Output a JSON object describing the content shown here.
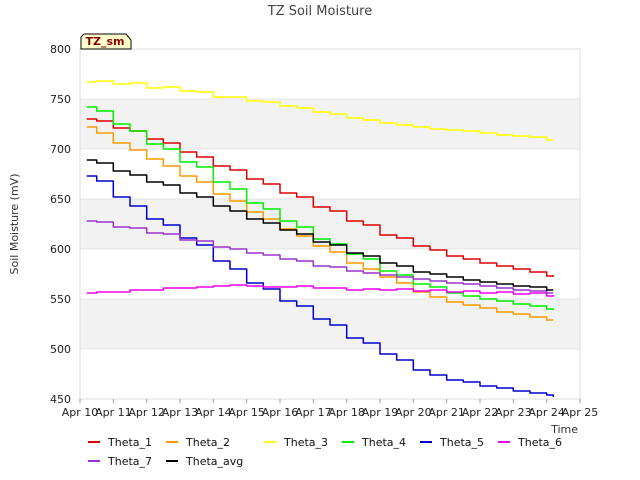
{
  "chart_data": {
    "type": "line",
    "title": "TZ Soil Moisture",
    "xlabel": "Time",
    "ylabel": "Soil Moisture (mV)",
    "badge": "TZ_sm",
    "ylim": [
      450,
      800
    ],
    "xlim": [
      10,
      25
    ],
    "yticks": [
      450,
      500,
      550,
      600,
      650,
      700,
      750,
      800
    ],
    "xticks": [
      {
        "value": 10,
        "label": "Apr 10"
      },
      {
        "value": 11,
        "label": "Apr 11"
      },
      {
        "value": 12,
        "label": "Apr 12"
      },
      {
        "value": 13,
        "label": "Apr 13"
      },
      {
        "value": 14,
        "label": "Apr 14"
      },
      {
        "value": 15,
        "label": "Apr 15"
      },
      {
        "value": 16,
        "label": "Apr 16"
      },
      {
        "value": 17,
        "label": "Apr 17"
      },
      {
        "value": 18,
        "label": "Apr 18"
      },
      {
        "value": 19,
        "label": "Apr 19"
      },
      {
        "value": 20,
        "label": "Apr 20"
      },
      {
        "value": 21,
        "label": "Apr 21"
      },
      {
        "value": 22,
        "label": "Apr 22"
      },
      {
        "value": 23,
        "label": "Apr 23"
      },
      {
        "value": 24,
        "label": "Apr 24"
      },
      {
        "value": 25,
        "label": "Apr 25"
      }
    ],
    "x": [
      10.2,
      10.5,
      11,
      11.5,
      12,
      12.5,
      13,
      13.5,
      14,
      14.5,
      15,
      15.5,
      16,
      16.5,
      17,
      17.5,
      18,
      18.5,
      19,
      19.5,
      20,
      20.5,
      21,
      21.5,
      22,
      22.5,
      23,
      23.5,
      24,
      24.2
    ],
    "series": [
      {
        "name": "Theta_1",
        "color": "#dd0000",
        "values": [
          730,
          728,
          721,
          718,
          710,
          706,
          697,
          692,
          683,
          679,
          670,
          665,
          656,
          652,
          642,
          638,
          628,
          624,
          614,
          611,
          603,
          599,
          593,
          590,
          586,
          583,
          580,
          577,
          573,
          574
        ]
      },
      {
        "name": "Theta_2",
        "color": "#ff9900",
        "values": [
          722,
          716,
          706,
          699,
          690,
          683,
          673,
          667,
          655,
          648,
          637,
          630,
          620,
          613,
          603,
          597,
          586,
          580,
          572,
          566,
          557,
          552,
          547,
          544,
          541,
          537,
          535,
          532,
          529,
          529
        ]
      },
      {
        "name": "Theta_3",
        "color": "#ffff00",
        "values": [
          767,
          768,
          765,
          766,
          761,
          762,
          758,
          757,
          752,
          752,
          748,
          747,
          743,
          741,
          737,
          735,
          731,
          729,
          726,
          724,
          722,
          720,
          719,
          718,
          716,
          714,
          713,
          712,
          709,
          709
        ]
      },
      {
        "name": "Theta_4",
        "color": "#00ee00",
        "values": [
          742,
          738,
          725,
          718,
          705,
          700,
          687,
          682,
          667,
          660,
          646,
          640,
          628,
          622,
          610,
          605,
          595,
          590,
          578,
          574,
          565,
          562,
          556,
          553,
          550,
          548,
          545,
          543,
          540,
          539
        ]
      },
      {
        "name": "Theta_5",
        "color": "#0000cc",
        "values": [
          673,
          668,
          652,
          643,
          630,
          624,
          611,
          604,
          588,
          580,
          566,
          560,
          548,
          543,
          530,
          524,
          511,
          506,
          495,
          489,
          479,
          474,
          469,
          467,
          463,
          461,
          458,
          456,
          454,
          452
        ]
      },
      {
        "name": "Theta_6",
        "color": "#ee00ee",
        "values": [
          556,
          557,
          557,
          559,
          559,
          561,
          561,
          562,
          563,
          564,
          563,
          562,
          562,
          563,
          561,
          561,
          559,
          560,
          559,
          560,
          558,
          559,
          557,
          558,
          556,
          557,
          555,
          556,
          553,
          554
        ]
      },
      {
        "name": "Theta_7",
        "color": "#9933cc",
        "values": [
          628,
          627,
          622,
          621,
          616,
          615,
          609,
          608,
          602,
          600,
          596,
          594,
          590,
          588,
          583,
          582,
          578,
          576,
          574,
          572,
          570,
          568,
          566,
          565,
          563,
          561,
          559,
          558,
          556,
          556
        ]
      },
      {
        "name": "Theta_avg",
        "color": "#000000",
        "values": [
          689,
          686,
          678,
          674,
          667,
          664,
          656,
          652,
          643,
          638,
          630,
          626,
          619,
          615,
          607,
          604,
          596,
          593,
          586,
          583,
          577,
          575,
          572,
          569,
          567,
          565,
          563,
          562,
          559,
          559
        ]
      }
    ],
    "bands": [
      [
        500,
        550
      ],
      [
        600,
        650
      ],
      [
        700,
        750
      ]
    ],
    "legend_position": "bottom"
  }
}
